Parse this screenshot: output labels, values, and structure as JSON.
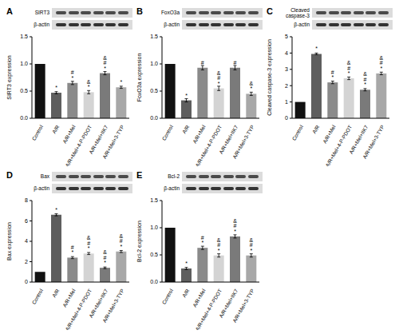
{
  "chart_data": [
    {
      "type": "bar",
      "panel": "A",
      "blot_labels": [
        "SIRT3",
        "β-actin"
      ],
      "ylabel": "SIRT3 expression",
      "categories": [
        "Control",
        "A/R",
        "A/R+Mel",
        "A/R+Mel+4-P-PDOT",
        "A/R+Mel+IIK7",
        "A/R+Mel+3-TYP"
      ],
      "values": [
        1.0,
        0.47,
        0.65,
        0.48,
        0.83,
        0.57
      ],
      "errors": [
        0,
        0.02,
        0.03,
        0.03,
        0.03,
        0.02
      ],
      "annotations": [
        null,
        "*",
        "*#",
        "*&",
        "*#&",
        "*"
      ],
      "colors": [
        "#111111",
        "#5e5e5e",
        "#8a8a8a",
        "#d4d4d4",
        "#7a7a7a",
        "#a8a8a8"
      ],
      "ylim": [
        0,
        1.5
      ],
      "yticks": [
        {
          "value": 0,
          "label": "0.0"
        },
        {
          "value": 0.5,
          "label": "0.5"
        },
        {
          "value": 1,
          "label": "1.0"
        },
        {
          "value": 1.5,
          "label": "1.5"
        }
      ],
      "grid": false
    },
    {
      "type": "bar",
      "panel": "B",
      "blot_labels": [
        "FoxO3a",
        "β-actin"
      ],
      "ylabel": "FoxO3a expression",
      "categories": [
        "Control",
        "A/R",
        "A/R+Mel",
        "A/R+Mel+4-P-PDOT",
        "A/R+Mel+IIK7",
        "A/R+Mel+3-TYP"
      ],
      "values": [
        1.0,
        0.33,
        0.93,
        0.55,
        0.93,
        0.45
      ],
      "errors": [
        0,
        0.03,
        0.04,
        0.04,
        0.04,
        0.03
      ],
      "annotations": [
        null,
        "*",
        "#",
        "*#&",
        "#",
        "*&"
      ],
      "colors": [
        "#111111",
        "#5e5e5e",
        "#8a8a8a",
        "#d4d4d4",
        "#7a7a7a",
        "#a8a8a8"
      ],
      "ylim": [
        0,
        1.5
      ],
      "yticks": [
        {
          "value": 0,
          "label": "0.0"
        },
        {
          "value": 0.5,
          "label": "0.5"
        },
        {
          "value": 1,
          "label": "1.0"
        },
        {
          "value": 1.5,
          "label": "1.5"
        }
      ],
      "grid": false
    },
    {
      "type": "bar",
      "panel": "C",
      "blot_labels": [
        "Cleaved caspase-3",
        "β-actin"
      ],
      "ylabel": "Cleaved caspase-3 expression",
      "categories": [
        "Control",
        "A/R",
        "A/R+Mel",
        "A/R+Mel+4-P-PDOT",
        "A/R+Mel+IIK7",
        "A/R+Mel+3-TYP"
      ],
      "values": [
        1.0,
        3.95,
        2.2,
        2.45,
        1.75,
        2.75
      ],
      "errors": [
        0,
        0.05,
        0.08,
        0.08,
        0.07,
        0.08
      ],
      "annotations": [
        null,
        "*",
        "*#",
        "*#&",
        "*#&",
        "*#&"
      ],
      "colors": [
        "#111111",
        "#5e5e5e",
        "#8a8a8a",
        "#d4d4d4",
        "#7a7a7a",
        "#a8a8a8"
      ],
      "ylim": [
        0,
        5
      ],
      "yticks": [
        0,
        1,
        2,
        3,
        4,
        5
      ],
      "grid": false
    },
    {
      "type": "bar",
      "panel": "D",
      "blot_labels": [
        "Bax",
        "β-actin"
      ],
      "ylabel": "Bax expression",
      "categories": [
        "Control",
        "A/R",
        "A/R+Mel",
        "A/R+Mel+4-P-PDOT",
        "A/R+Mel+IIK7",
        "A/R+Mel+3-TYP"
      ],
      "values": [
        1.0,
        6.6,
        2.4,
        2.8,
        1.4,
        3.0
      ],
      "errors": [
        0,
        0.1,
        0.1,
        0.1,
        0.08,
        0.1
      ],
      "annotations": [
        null,
        "*",
        "*#",
        "*#&",
        "*#&",
        "*#&"
      ],
      "colors": [
        "#111111",
        "#5e5e5e",
        "#8a8a8a",
        "#d4d4d4",
        "#7a7a7a",
        "#a8a8a8"
      ],
      "ylim": [
        0,
        8
      ],
      "yticks": [
        0,
        2,
        4,
        6,
        8
      ],
      "grid": false
    },
    {
      "type": "bar",
      "panel": "E",
      "blot_labels": [
        "Bcl-2",
        "β-actin"
      ],
      "ylabel": "Bcl-2 expression",
      "categories": [
        "Control",
        "A/R",
        "A/R+Mel",
        "A/R+Mel+4-P-PDOT",
        "A/R+Mel+IIK7",
        "A/R+Mel+3-TYP"
      ],
      "values": [
        1.0,
        0.25,
        0.63,
        0.49,
        0.84,
        0.49
      ],
      "errors": [
        0,
        0.02,
        0.03,
        0.03,
        0.03,
        0.03
      ],
      "annotations": [
        null,
        "*",
        "*#",
        "*#&",
        "*#&",
        "*#&"
      ],
      "colors": [
        "#111111",
        "#5e5e5e",
        "#8a8a8a",
        "#d4d4d4",
        "#7a7a7a",
        "#a8a8a8"
      ],
      "ylim": [
        0,
        1.5
      ],
      "yticks": [
        {
          "value": 0,
          "label": "0.0"
        },
        {
          "value": 0.5,
          "label": "0.5"
        },
        {
          "value": 1,
          "label": "1.0"
        },
        {
          "value": 1.5,
          "label": "1.5"
        }
      ],
      "grid": false
    }
  ]
}
